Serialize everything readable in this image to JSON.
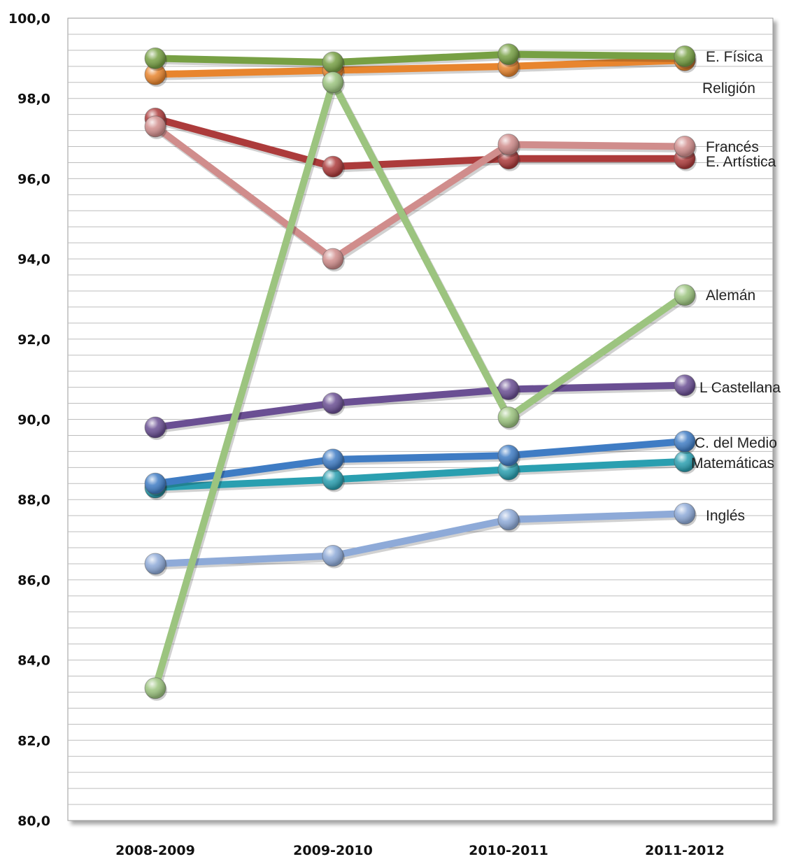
{
  "chart_data": {
    "type": "line",
    "categories": [
      "2008-2009",
      "2009-2010",
      "2010-2011",
      "2011-2012"
    ],
    "ylim": [
      80,
      100
    ],
    "yticks": [
      "80,0",
      "82,0",
      "84,0",
      "86,0",
      "88,0",
      "90,0",
      "92,0",
      "94,0",
      "96,0",
      "98,0",
      "100,0"
    ],
    "grid": true,
    "series": [
      {
        "name": "E. Física",
        "values": [
          99.0,
          98.9,
          99.1,
          99.05
        ],
        "color": "#77a044"
      },
      {
        "name": "Religión",
        "values": [
          98.6,
          98.7,
          98.8,
          98.95
        ],
        "color": "#e8852e"
      },
      {
        "name": "Francés",
        "values": [
          97.3,
          94.0,
          96.85,
          96.8
        ],
        "color": "#d08d8c"
      },
      {
        "name": "E. Artística",
        "values": [
          97.5,
          96.3,
          96.5,
          96.5
        ],
        "color": "#ac3b3b"
      },
      {
        "name": "Alemán",
        "values": [
          83.3,
          98.4,
          90.05,
          93.1
        ],
        "color": "#9cc47f"
      },
      {
        "name": "L Castellana",
        "values": [
          89.8,
          90.4,
          90.75,
          90.85
        ],
        "color": "#6a4f93"
      },
      {
        "name": "C. del Medio",
        "values": [
          88.4,
          89.0,
          89.1,
          89.45
        ],
        "color": "#3f7cc4"
      },
      {
        "name": "Matemáticas",
        "values": [
          88.3,
          88.5,
          88.75,
          88.95
        ],
        "color": "#2a9fb0"
      },
      {
        "name": "Inglés",
        "values": [
          86.4,
          86.6,
          87.5,
          87.65
        ],
        "color": "#8eaad8"
      }
    ]
  }
}
